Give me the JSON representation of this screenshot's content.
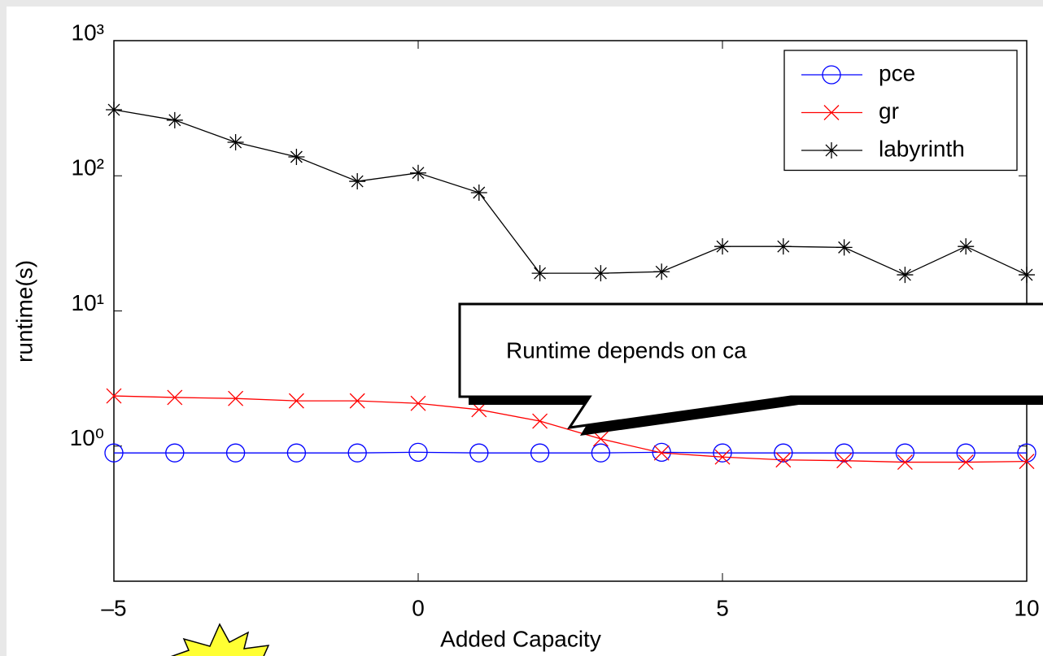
{
  "chart_data": {
    "type": "line",
    "x_label": "Added Capacity",
    "y_label": "runtime(s)",
    "annotation": "Runtime depends on ca",
    "x": [
      -5,
      -4,
      -3,
      -2,
      -1,
      0,
      1,
      2,
      3,
      4,
      5,
      6,
      7,
      8,
      9,
      10
    ],
    "series": [
      {
        "name": "pce",
        "color": "#0000ff",
        "marker": "o",
        "values": [
          0.89,
          0.89,
          0.89,
          0.89,
          0.89,
          0.9,
          0.89,
          0.89,
          0.89,
          0.9,
          0.89,
          0.89,
          0.89,
          0.89,
          0.89,
          0.89
        ]
      },
      {
        "name": "gr",
        "color": "#ff0000",
        "marker": "x",
        "values": [
          2.35,
          2.29,
          2.25,
          2.16,
          2.16,
          2.07,
          1.86,
          1.53,
          1.13,
          0.89,
          0.83,
          0.79,
          0.78,
          0.76,
          0.76,
          0.77
        ]
      },
      {
        "name": "labyrinth",
        "color": "#000000",
        "marker": "*",
        "values": [
          308,
          258,
          177,
          138,
          91,
          105,
          75,
          19,
          19,
          19.5,
          30,
          30,
          29.5,
          18.5,
          30,
          18.5
        ]
      }
    ],
    "xlim": [
      -5,
      10
    ],
    "xticks": [
      {
        "value": -5,
        "label": "–5"
      },
      0,
      5,
      10
    ],
    "ylim": [
      0.1,
      1000
    ],
    "y_log": true,
    "yticks": [
      {
        "value": 1,
        "label": "10⁰"
      },
      {
        "value": 10,
        "label": "10¹"
      },
      {
        "value": 100,
        "label": "10²"
      },
      {
        "value": 1000,
        "label": "10³"
      }
    ],
    "legend": "upper right",
    "grid": false
  }
}
